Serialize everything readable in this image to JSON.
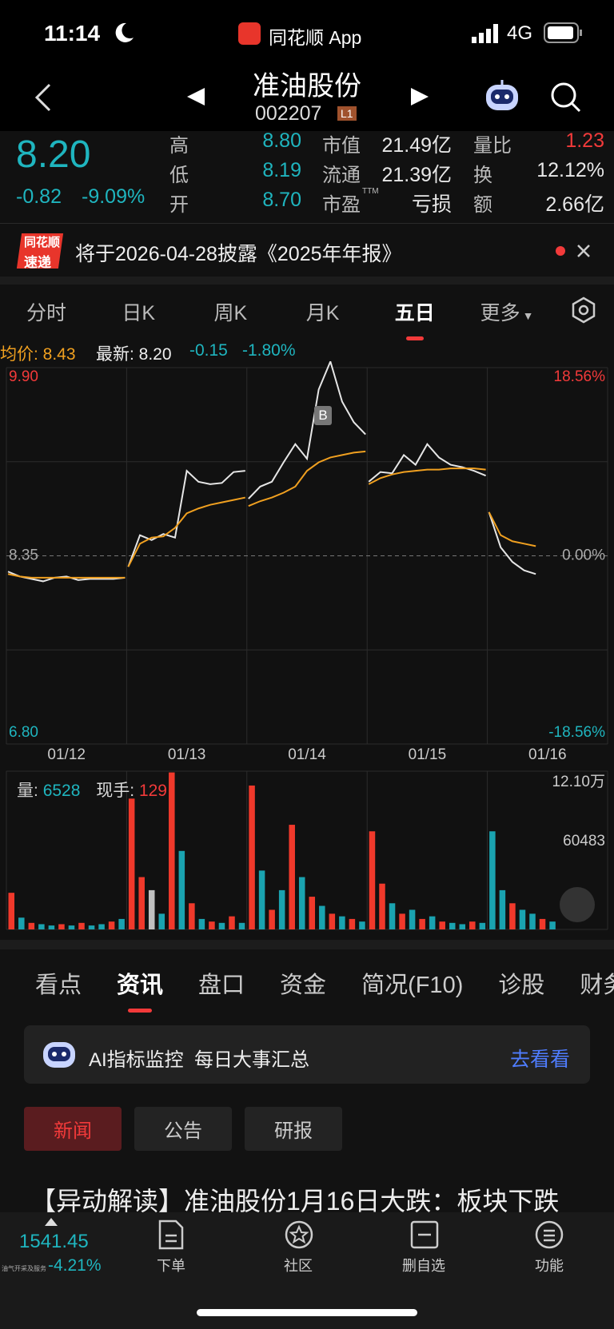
{
  "status_bar": {
    "time": "11:14",
    "app": "同花顺 App",
    "network": "4G"
  },
  "header": {
    "title": "准油股份",
    "code": "002207",
    "badge": "L1"
  },
  "quote": {
    "price": "8.20",
    "change": "-0.82",
    "change_pct": "-9.09%",
    "stats": [
      {
        "label": "高",
        "value": "8.80",
        "color": "#1fb5bf"
      },
      {
        "label": "低",
        "value": "8.19",
        "color": "#1fb5bf"
      },
      {
        "label": "开",
        "value": "8.70",
        "color": "#1fb5bf"
      },
      {
        "label": "市值",
        "value": "21.49亿",
        "color": "#e8e8e8"
      },
      {
        "label": "流通",
        "value": "21.39亿",
        "color": "#e8e8e8"
      },
      {
        "label": "市盈",
        "sup": "TTM",
        "value": "亏损",
        "color": "#e8e8e8"
      },
      {
        "label": "量比",
        "value": "1.23",
        "color": "#f23a3a"
      },
      {
        "label": "换",
        "value": "12.12%",
        "color": "#e8e8e8"
      },
      {
        "label": "额",
        "value": "2.66亿",
        "color": "#e8e8e8"
      }
    ]
  },
  "notice": {
    "badge_top": "同花顺",
    "badge_bottom": "速递",
    "text": "将于2026-04-28披露《2025年年报》"
  },
  "chart_tabs": {
    "items": [
      "分时",
      "日K",
      "周K",
      "月K",
      "五日",
      "更多"
    ],
    "active": 4
  },
  "price_chart": {
    "type": "line",
    "avg_label": "均价: 8.43",
    "last_label": "最新: 8.20",
    "change": "-0.15",
    "change_pct": "-1.80%",
    "buy_marker": "B",
    "ylim": [
      6.8,
      9.9
    ],
    "yticks": [
      {
        "value": 9.9,
        "label": "9.90"
      },
      {
        "value": 8.35,
        "label": "8.35"
      },
      {
        "value": 6.8,
        "label": "6.80"
      }
    ],
    "y2lim": [
      -18.56,
      18.56
    ],
    "y2ticks": [
      {
        "value": 18.56,
        "label": "18.56%"
      },
      {
        "value": 0,
        "label": "0.00%"
      },
      {
        "value": -18.56,
        "label": "-18.56%"
      }
    ],
    "categories": [
      "01/12",
      "01/13",
      "01/14",
      "01/15",
      "01/16"
    ],
    "series": [
      {
        "color": "#e6e6e6",
        "values": [
          [
            8.22,
            8.18,
            8.16,
            8.14,
            8.17,
            8.18,
            8.15,
            8.16,
            8.16,
            8.16,
            8.17
          ],
          [
            8.26,
            8.52,
            8.48,
            8.53,
            8.5,
            9.05,
            8.96,
            8.94,
            8.95,
            9.04,
            9.05
          ],
          [
            8.82,
            8.92,
            8.96,
            9.12,
            9.27,
            9.15,
            9.72,
            9.95,
            9.62,
            9.45,
            9.35
          ],
          [
            8.96,
            9.04,
            9.03,
            9.18,
            9.1,
            9.27,
            9.16,
            9.1,
            9.08,
            9.05,
            9.01
          ],
          [
            8.71,
            8.42,
            8.3,
            8.23,
            8.2
          ]
        ]
      },
      {
        "color": "#f0a020",
        "values": [
          [
            8.2,
            8.18,
            8.17,
            8.17,
            8.17,
            8.17,
            8.17,
            8.17,
            8.17,
            8.17,
            8.17
          ],
          [
            8.26,
            8.45,
            8.5,
            8.51,
            8.58,
            8.7,
            8.74,
            8.77,
            8.79,
            8.81,
            8.83
          ],
          [
            8.76,
            8.8,
            8.83,
            8.87,
            8.92,
            9.05,
            9.12,
            9.16,
            9.18,
            9.2,
            9.21
          ],
          [
            8.94,
            8.99,
            9.02,
            9.04,
            9.05,
            9.06,
            9.06,
            9.07,
            9.07,
            9.07,
            9.06
          ],
          [
            8.71,
            8.52,
            8.47,
            8.45,
            8.43
          ]
        ]
      }
    ]
  },
  "volume_chart": {
    "type": "bar",
    "qty_label": "量:",
    "qty": "6528",
    "hand_label": "现手:",
    "hand": "129",
    "ylim": [
      0,
      120966
    ],
    "yticks": [
      {
        "value": 120966,
        "label": "12.10万"
      },
      60483
    ],
    "values": [
      28000,
      9000,
      5000,
      4000,
      3000,
      4000,
      3000,
      5000,
      3000,
      4000,
      6000,
      8000,
      100000,
      40000,
      30000,
      12000,
      120000,
      60000,
      20000,
      8000,
      6000,
      5000,
      10000,
      5000,
      110000,
      45000,
      15000,
      30000,
      80000,
      40000,
      25000,
      18000,
      12000,
      10000,
      8000,
      6000,
      75000,
      35000,
      20000,
      12000,
      15000,
      8000,
      10000,
      6000,
      5000,
      4000,
      6000,
      5000,
      75000,
      30000,
      20000,
      15000,
      12000,
      8000,
      6000
    ],
    "colors": [
      "#f0392b",
      "#1aa3b0",
      "#f0392b",
      "#1aa3b0",
      "#1aa3b0",
      "#f0392b",
      "#1aa3b0",
      "#f0392b",
      "#1aa3b0",
      "#1aa3b0",
      "#f0392b",
      "#1aa3b0",
      "#f0392b",
      "#f0392b",
      "#c0c0c0",
      "#1aa3b0",
      "#f0392b",
      "#1aa3b0",
      "#f0392b",
      "#1aa3b0",
      "#f0392b",
      "#1aa3b0",
      "#f0392b",
      "#1aa3b0",
      "#f0392b",
      "#1aa3b0",
      "#f0392b",
      "#1aa3b0",
      "#f0392b",
      "#1aa3b0",
      "#f0392b",
      "#1aa3b0",
      "#f0392b",
      "#1aa3b0",
      "#f0392b",
      "#1aa3b0",
      "#f0392b",
      "#f0392b",
      "#1aa3b0",
      "#f0392b",
      "#1aa3b0",
      "#f0392b",
      "#1aa3b0",
      "#f0392b",
      "#1aa3b0",
      "#1aa3b0",
      "#f0392b",
      "#1aa3b0",
      "#1aa3b0",
      "#1aa3b0",
      "#f0392b",
      "#1aa3b0",
      "#1aa3b0",
      "#f0392b",
      "#1aa3b0"
    ]
  },
  "sections": {
    "items": [
      "看点",
      "资讯",
      "盘口",
      "资金",
      "简况(F10)",
      "诊股",
      "财务"
    ],
    "active": 1
  },
  "ai_banner": {
    "text": "AI指标监控  每日大事汇总",
    "action": "去看看"
  },
  "news_tabs": {
    "items": [
      "新闻",
      "公告",
      "研报"
    ],
    "active": 0
  },
  "headline": "【异动解读】准油股份1月16日大跌：板块下跌",
  "bottom_bar": {
    "index": "1541.45",
    "index_name": "油气开采及服务",
    "index_change": "-4.21%",
    "items": [
      "下单",
      "社区",
      "删自选",
      "功能"
    ]
  }
}
